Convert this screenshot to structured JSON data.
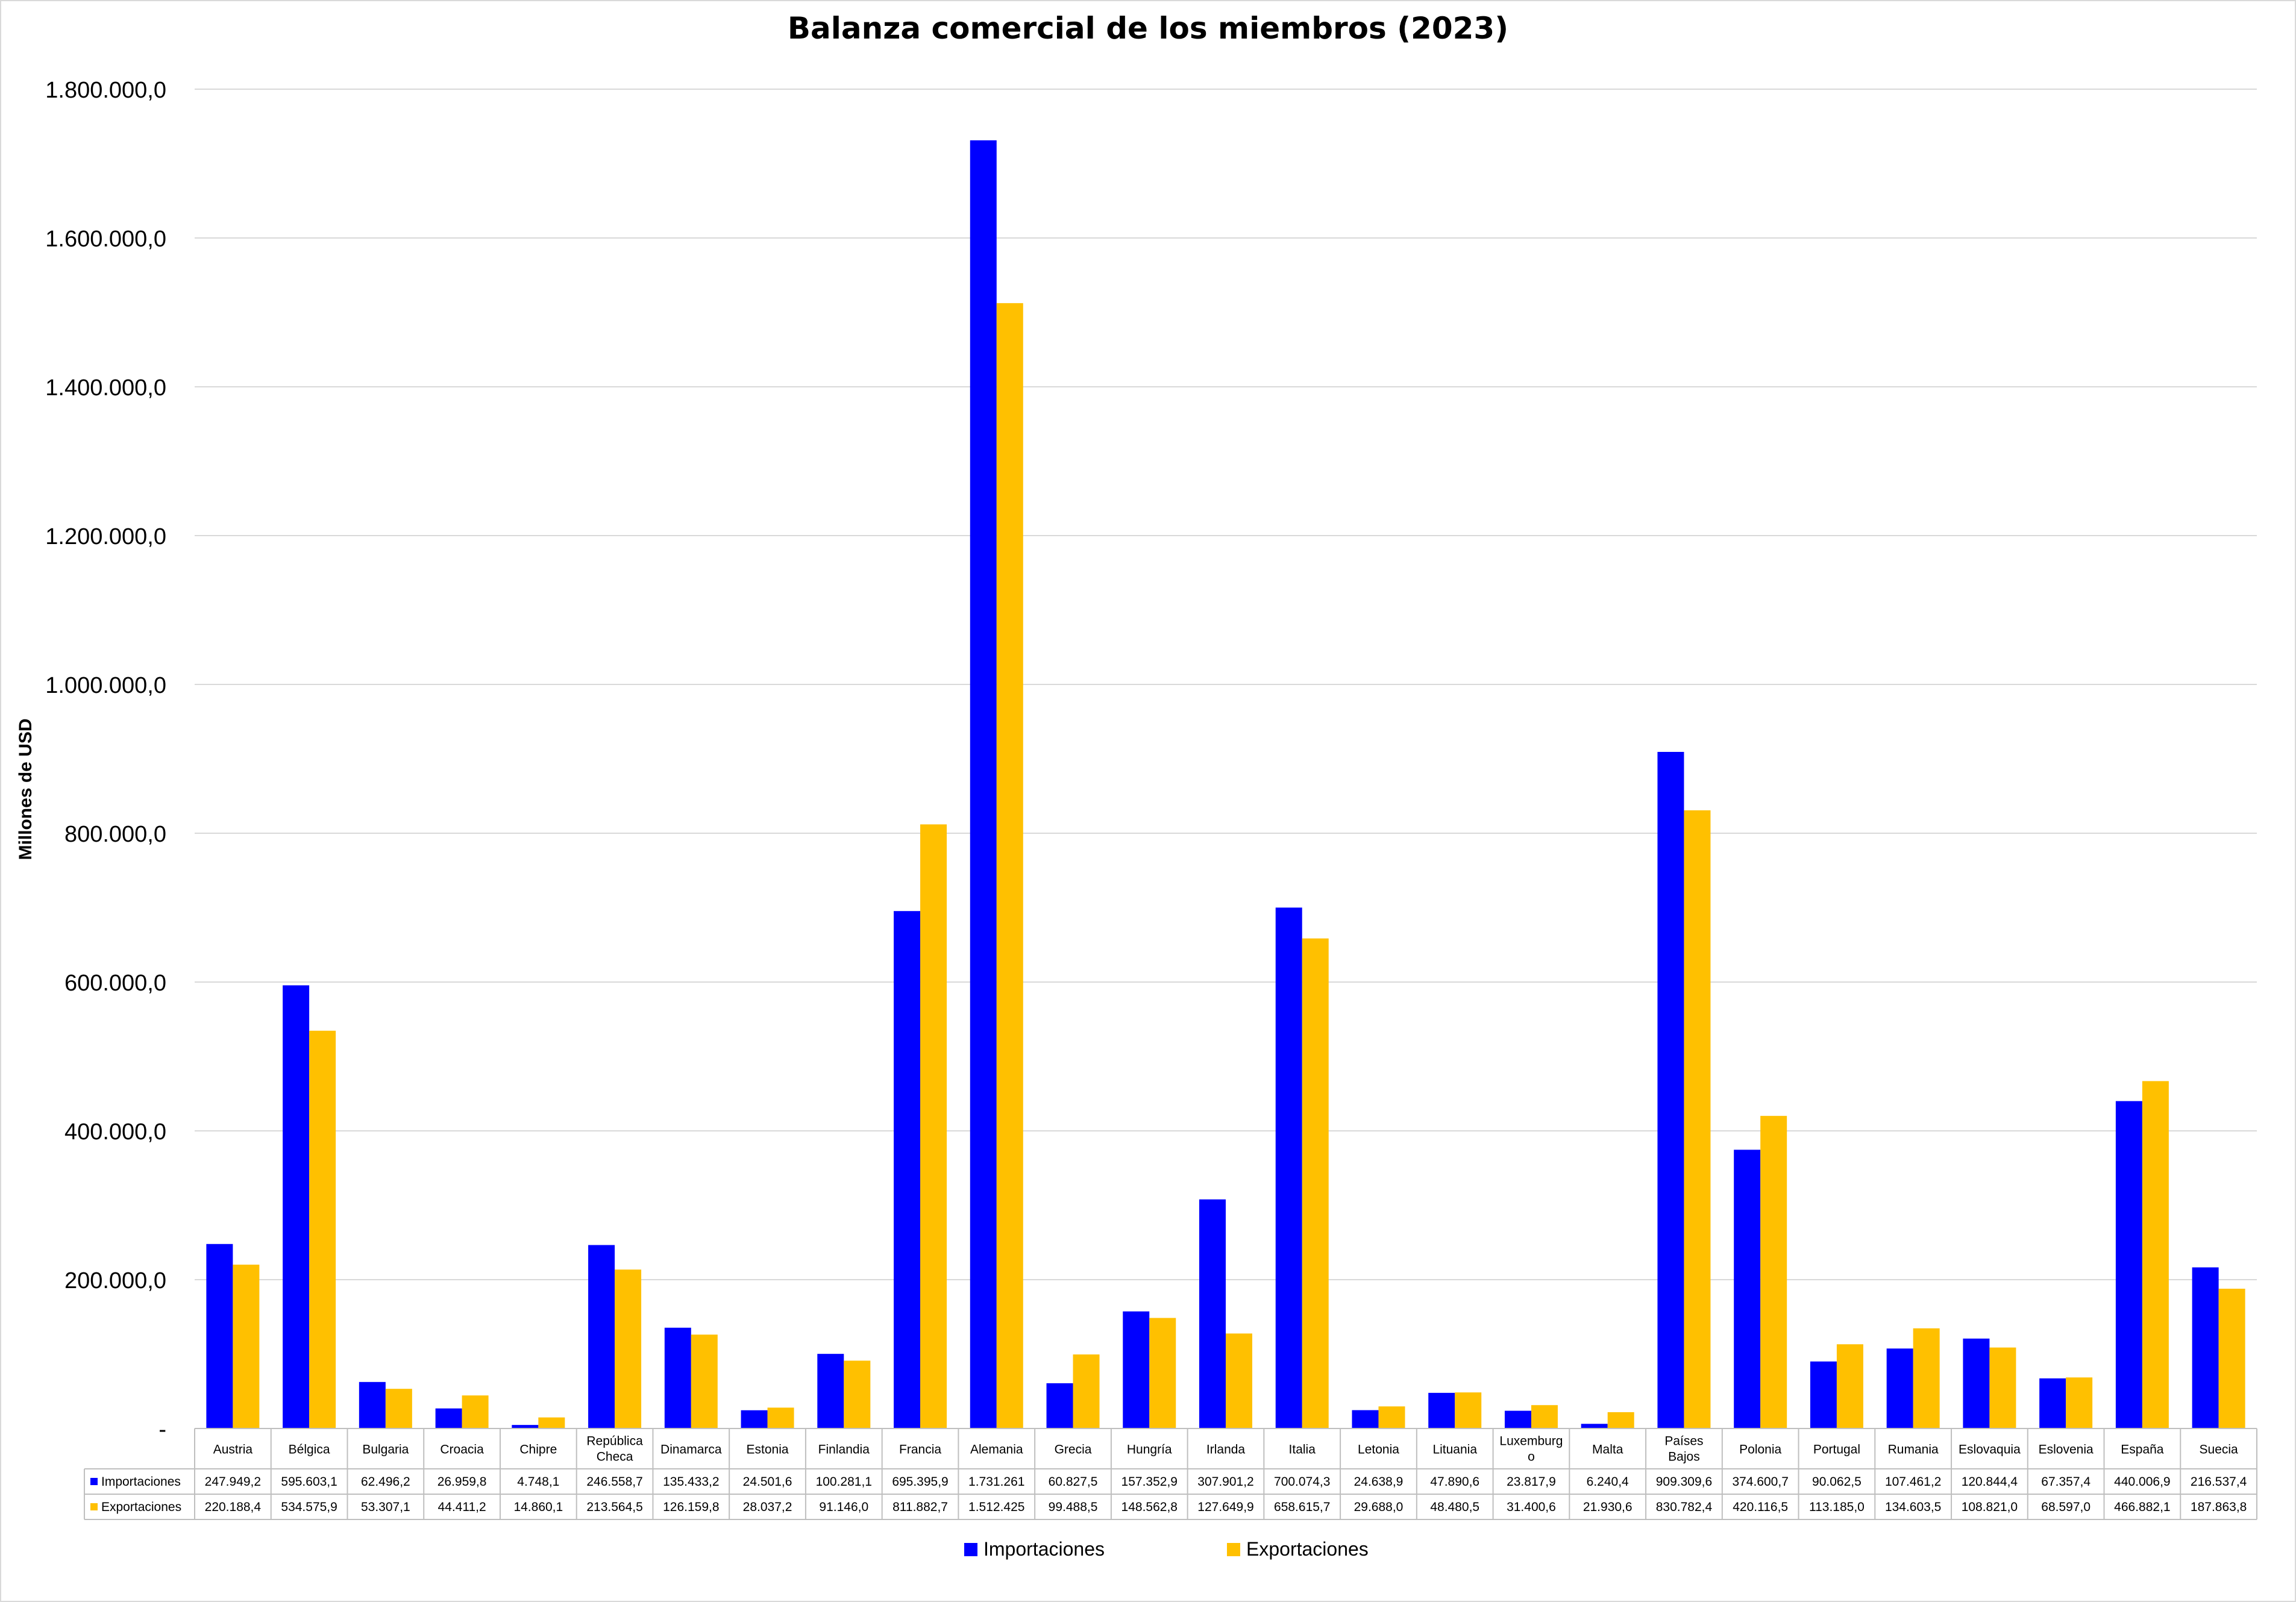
{
  "chart_data": {
    "type": "bar",
    "title": "Balanza comercial de los miembros (2023)",
    "ylabel": "Millones de USD",
    "xlabel": "",
    "ylim": [
      0,
      1800000
    ],
    "y_ticks": [
      0,
      200000,
      400000,
      600000,
      800000,
      1000000,
      1200000,
      1400000,
      1600000,
      1800000
    ],
    "y_tick_labels": [
      "-",
      "200.000,0",
      "400.000,0",
      "600.000,0",
      "800.000,0",
      "1.000.000,0",
      "1.200.000,0",
      "1.400.000,0",
      "1.600.000,0",
      "1.800.000,0"
    ],
    "grid": true,
    "legend_position": "bottom",
    "categories": [
      "Austria",
      "Bélgica",
      "Bulgaria",
      "Croacia",
      "Chipre",
      "República Checa",
      "Dinamarca",
      "Estonia",
      "Finlandia",
      "Francia",
      "Alemania",
      "Grecia",
      "Hungría",
      "Irlanda",
      "Italia",
      "Letonia",
      "Lituania",
      "Luxemburgo",
      "Malta",
      "Países Bajos",
      "Polonia",
      "Portugal",
      "Rumania",
      "Eslovaquia",
      "Eslovenia",
      "España",
      "Suecia"
    ],
    "category_labels": [
      [
        "Austria"
      ],
      [
        "Bélgica"
      ],
      [
        "Bulgaria"
      ],
      [
        "Croacia"
      ],
      [
        "Chipre"
      ],
      [
        "República",
        "Checa"
      ],
      [
        "Dinamarca"
      ],
      [
        "Estonia"
      ],
      [
        "Finlandia"
      ],
      [
        "Francia"
      ],
      [
        "Alemania"
      ],
      [
        "Grecia"
      ],
      [
        "Hungría"
      ],
      [
        "Irlanda"
      ],
      [
        "Italia"
      ],
      [
        "Letonia"
      ],
      [
        "Lituania"
      ],
      [
        "Luxemburg",
        "o"
      ],
      [
        "Malta"
      ],
      [
        "Países",
        "Bajos"
      ],
      [
        "Polonia"
      ],
      [
        "Portugal"
      ],
      [
        "Rumania"
      ],
      [
        "Eslovaquia"
      ],
      [
        "Eslovenia"
      ],
      [
        "España"
      ],
      [
        "Suecia"
      ]
    ],
    "series": [
      {
        "name": "Importaciones",
        "color": "#0000FF",
        "values": [
          247949.2,
          595603.1,
          62496.2,
          26959.8,
          4748.1,
          246558.7,
          135433.2,
          24501.6,
          100281.1,
          695395.9,
          1731261,
          60827.5,
          157352.9,
          307901.2,
          700074.3,
          24638.9,
          47890.6,
          23817.9,
          6240.4,
          909309.6,
          374600.7,
          90062.5,
          107461.2,
          120844.4,
          67357.4,
          440006.9,
          216537.4
        ],
        "labels": [
          "247.949,2",
          "595.603,1",
          "62.496,2",
          "26.959,8",
          "4.748,1",
          "246.558,7",
          "135.433,2",
          "24.501,6",
          "100.281,1",
          "695.395,9",
          "1.731.261",
          "60.827,5",
          "157.352,9",
          "307.901,2",
          "700.074,3",
          "24.638,9",
          "47.890,6",
          "23.817,9",
          "6.240,4",
          "909.309,6",
          "374.600,7",
          "90.062,5",
          "107.461,2",
          "120.844,4",
          "67.357,4",
          "440.006,9",
          "216.537,4"
        ]
      },
      {
        "name": "Exportaciones",
        "color": "#FFC000",
        "values": [
          220188.4,
          534575.9,
          53307.1,
          44411.2,
          14860.1,
          213564.5,
          126159.8,
          28037.2,
          91146.0,
          811882.7,
          1512425,
          99488.5,
          148562.8,
          127649.9,
          658615.7,
          29688.0,
          48480.5,
          31400.6,
          21930.6,
          830782.4,
          420116.5,
          113185.0,
          134603.5,
          108821.0,
          68597.0,
          466882.1,
          187863.8
        ],
        "labels": [
          "220.188,4",
          "534.575,9",
          "53.307,1",
          "44.411,2",
          "14.860,1",
          "213.564,5",
          "126.159,8",
          "28.037,2",
          "91.146,0",
          "811.882,7",
          "1.512.425",
          "99.488,5",
          "148.562,8",
          "127.649,9",
          "658.615,7",
          "29.688,0",
          "48.480,5",
          "31.400,6",
          "21.930,6",
          "830.782,4",
          "420.116,5",
          "113.185,0",
          "134.603,5",
          "108.821,0",
          "68.597,0",
          "466.882,1",
          "187.863,8"
        ]
      }
    ]
  }
}
